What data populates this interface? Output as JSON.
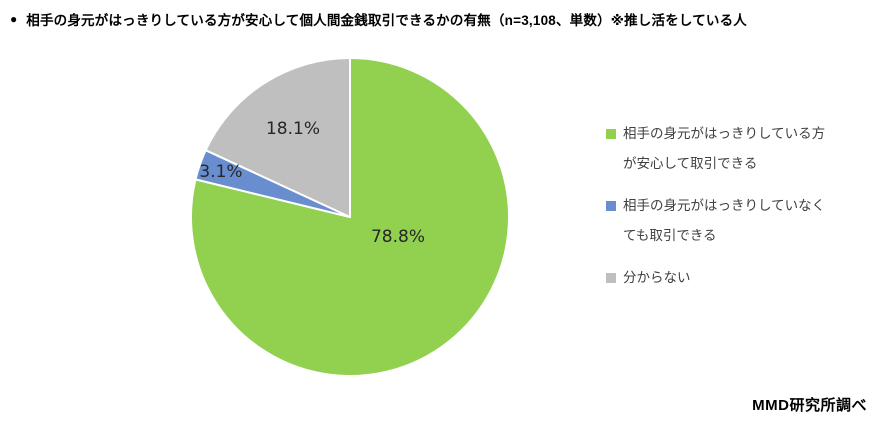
{
  "header": {
    "bullet": "●",
    "title": "相手の身元がはっきりしている方が安心して個人間金銭取引できるかの有無（n=3,108、単数）※推し活をしている人"
  },
  "chart_data": {
    "type": "pie",
    "title": "相手の身元がはっきりしている方が安心して個人間金銭取引できるかの有無（n=3,108、単数）※推し活をしている人",
    "labels": [
      "相手の身元がはっきりしている方が安心して取引できる",
      "相手の身元がはっきりしていなくても取引できる",
      "分からない"
    ],
    "values": [
      78.8,
      3.1,
      18.1
    ],
    "data_labels": [
      "78.8%",
      "3.1%",
      "18.1%"
    ],
    "colors": [
      "#92D050",
      "#698ED0",
      "#BFBFBF"
    ],
    "slice_border_color": "#FFFFFF",
    "start_angle": "top",
    "direction": "clockwise",
    "legend_position": "right"
  },
  "legend": {
    "items": [
      {
        "color": "#92D050",
        "lines": [
          "相手の身元がはっきりしている方",
          "が安心して取引できる"
        ]
      },
      {
        "color": "#698ED0",
        "lines": [
          "相手の身元がはっきりしていなく",
          "ても取引できる"
        ]
      },
      {
        "color": "#BFBFBF",
        "lines": [
          "分からない"
        ]
      }
    ]
  },
  "source": "MMD研究所調べ"
}
